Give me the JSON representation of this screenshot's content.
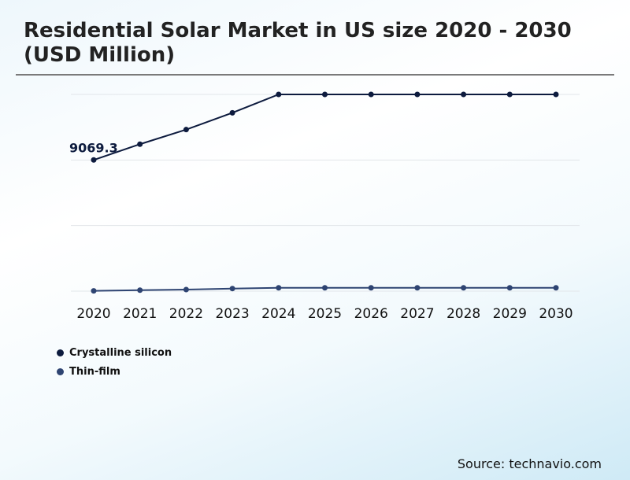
{
  "title": "Residential Solar Market in US size 2020 - 2030 (USD Million)",
  "source": "Source: technavio.com",
  "chart_data": {
    "type": "line",
    "title": "Residential Solar Market in US size 2020 - 2030 (USD Million)",
    "categories": [
      "2020",
      "2021",
      "2022",
      "2023",
      "2024",
      "2025",
      "2026",
      "2027",
      "2028",
      "2029",
      "2030"
    ],
    "ylim": [
      0,
      13600
    ],
    "grid": true,
    "legend": "bottom-left",
    "series": [
      {
        "name": "Crystalline silicon",
        "color": "#0d1b3e",
        "values": [
          9069.3,
          10160,
          11170,
          12330,
          13600,
          13600,
          13600,
          13600,
          13600,
          13600,
          13600
        ]
      },
      {
        "name": "Thin-film",
        "color": "#2e4472",
        "values": [
          20,
          70,
          110,
          180,
          230,
          230,
          230,
          230,
          230,
          230,
          230
        ]
      }
    ],
    "annotations": [
      {
        "category": "2020",
        "series": "Crystalline silicon",
        "text": "9069.3"
      }
    ]
  }
}
